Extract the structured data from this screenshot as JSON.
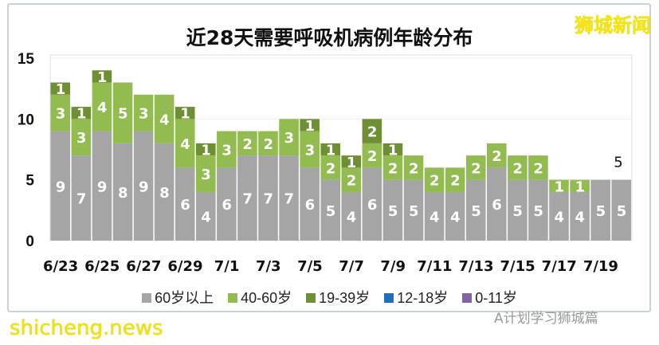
{
  "chart_data": {
    "type": "bar",
    "stacked": true,
    "title": "近28天需要呼吸机病例年龄分布",
    "categories": [
      "6/23",
      "6/24",
      "6/25",
      "6/26",
      "6/27",
      "6/28",
      "6/29",
      "6/30",
      "7/1",
      "7/2",
      "7/3",
      "7/4",
      "7/5",
      "7/6",
      "7/7",
      "7/8",
      "7/9",
      "7/10",
      "7/11",
      "7/12",
      "7/13",
      "7/14",
      "7/15",
      "7/16",
      "7/17",
      "7/18",
      "7/19",
      "7/20"
    ],
    "tick_labels": [
      "6/23",
      "6/25",
      "6/27",
      "6/29",
      "7/1",
      "7/3",
      "7/5",
      "7/7",
      "7/9",
      "7/11",
      "7/13",
      "7/15",
      "7/17",
      "7/19"
    ],
    "series": [
      {
        "name": "60岁以上",
        "color": "#a5a5a5",
        "values": [
          9,
          7,
          9,
          8,
          9,
          8,
          6,
          4,
          6,
          7,
          7,
          7,
          6,
          5,
          4,
          6,
          5,
          5,
          4,
          4,
          5,
          6,
          5,
          5,
          4,
          4,
          5,
          5
        ]
      },
      {
        "name": "40-60岁",
        "color": "#92bb50",
        "values": [
          3,
          3,
          4,
          5,
          3,
          4,
          4,
          3,
          3,
          2,
          2,
          3,
          3,
          2,
          2,
          2,
          2,
          2,
          2,
          2,
          2,
          2,
          2,
          2,
          1,
          1,
          0,
          0
        ]
      },
      {
        "name": "19-39岁",
        "color": "#6f8f34",
        "values": [
          1,
          1,
          1,
          0,
          0,
          0,
          1,
          1,
          0,
          0,
          0,
          0,
          1,
          1,
          1,
          2,
          1,
          0,
          0,
          0,
          0,
          0,
          0,
          0,
          0,
          0,
          0,
          0
        ]
      },
      {
        "name": "12-18岁",
        "color": "#1f6fc0",
        "values": [
          0,
          0,
          0,
          0,
          0,
          0,
          0,
          0,
          0,
          0,
          0,
          0,
          0,
          0,
          0,
          0,
          0,
          0,
          0,
          0,
          0,
          0,
          0,
          0,
          0,
          0,
          0,
          0
        ]
      },
      {
        "name": "0-11岁",
        "color": "#8064a2",
        "values": [
          0,
          0,
          0,
          0,
          0,
          0,
          0,
          0,
          0,
          0,
          0,
          0,
          0,
          0,
          0,
          0,
          0,
          0,
          0,
          0,
          0,
          0,
          0,
          0,
          0,
          0,
          0,
          0
        ]
      }
    ],
    "annotation": "5",
    "yticks": [
      "0",
      "5",
      "10",
      "15"
    ],
    "ylim": [
      0,
      15
    ],
    "grid": true,
    "legend": "bottom"
  },
  "watermarks": {
    "top_right": "狮城新闻",
    "bottom_left": "shicheng.news",
    "bottom_right": "A计划学习狮城篇"
  }
}
